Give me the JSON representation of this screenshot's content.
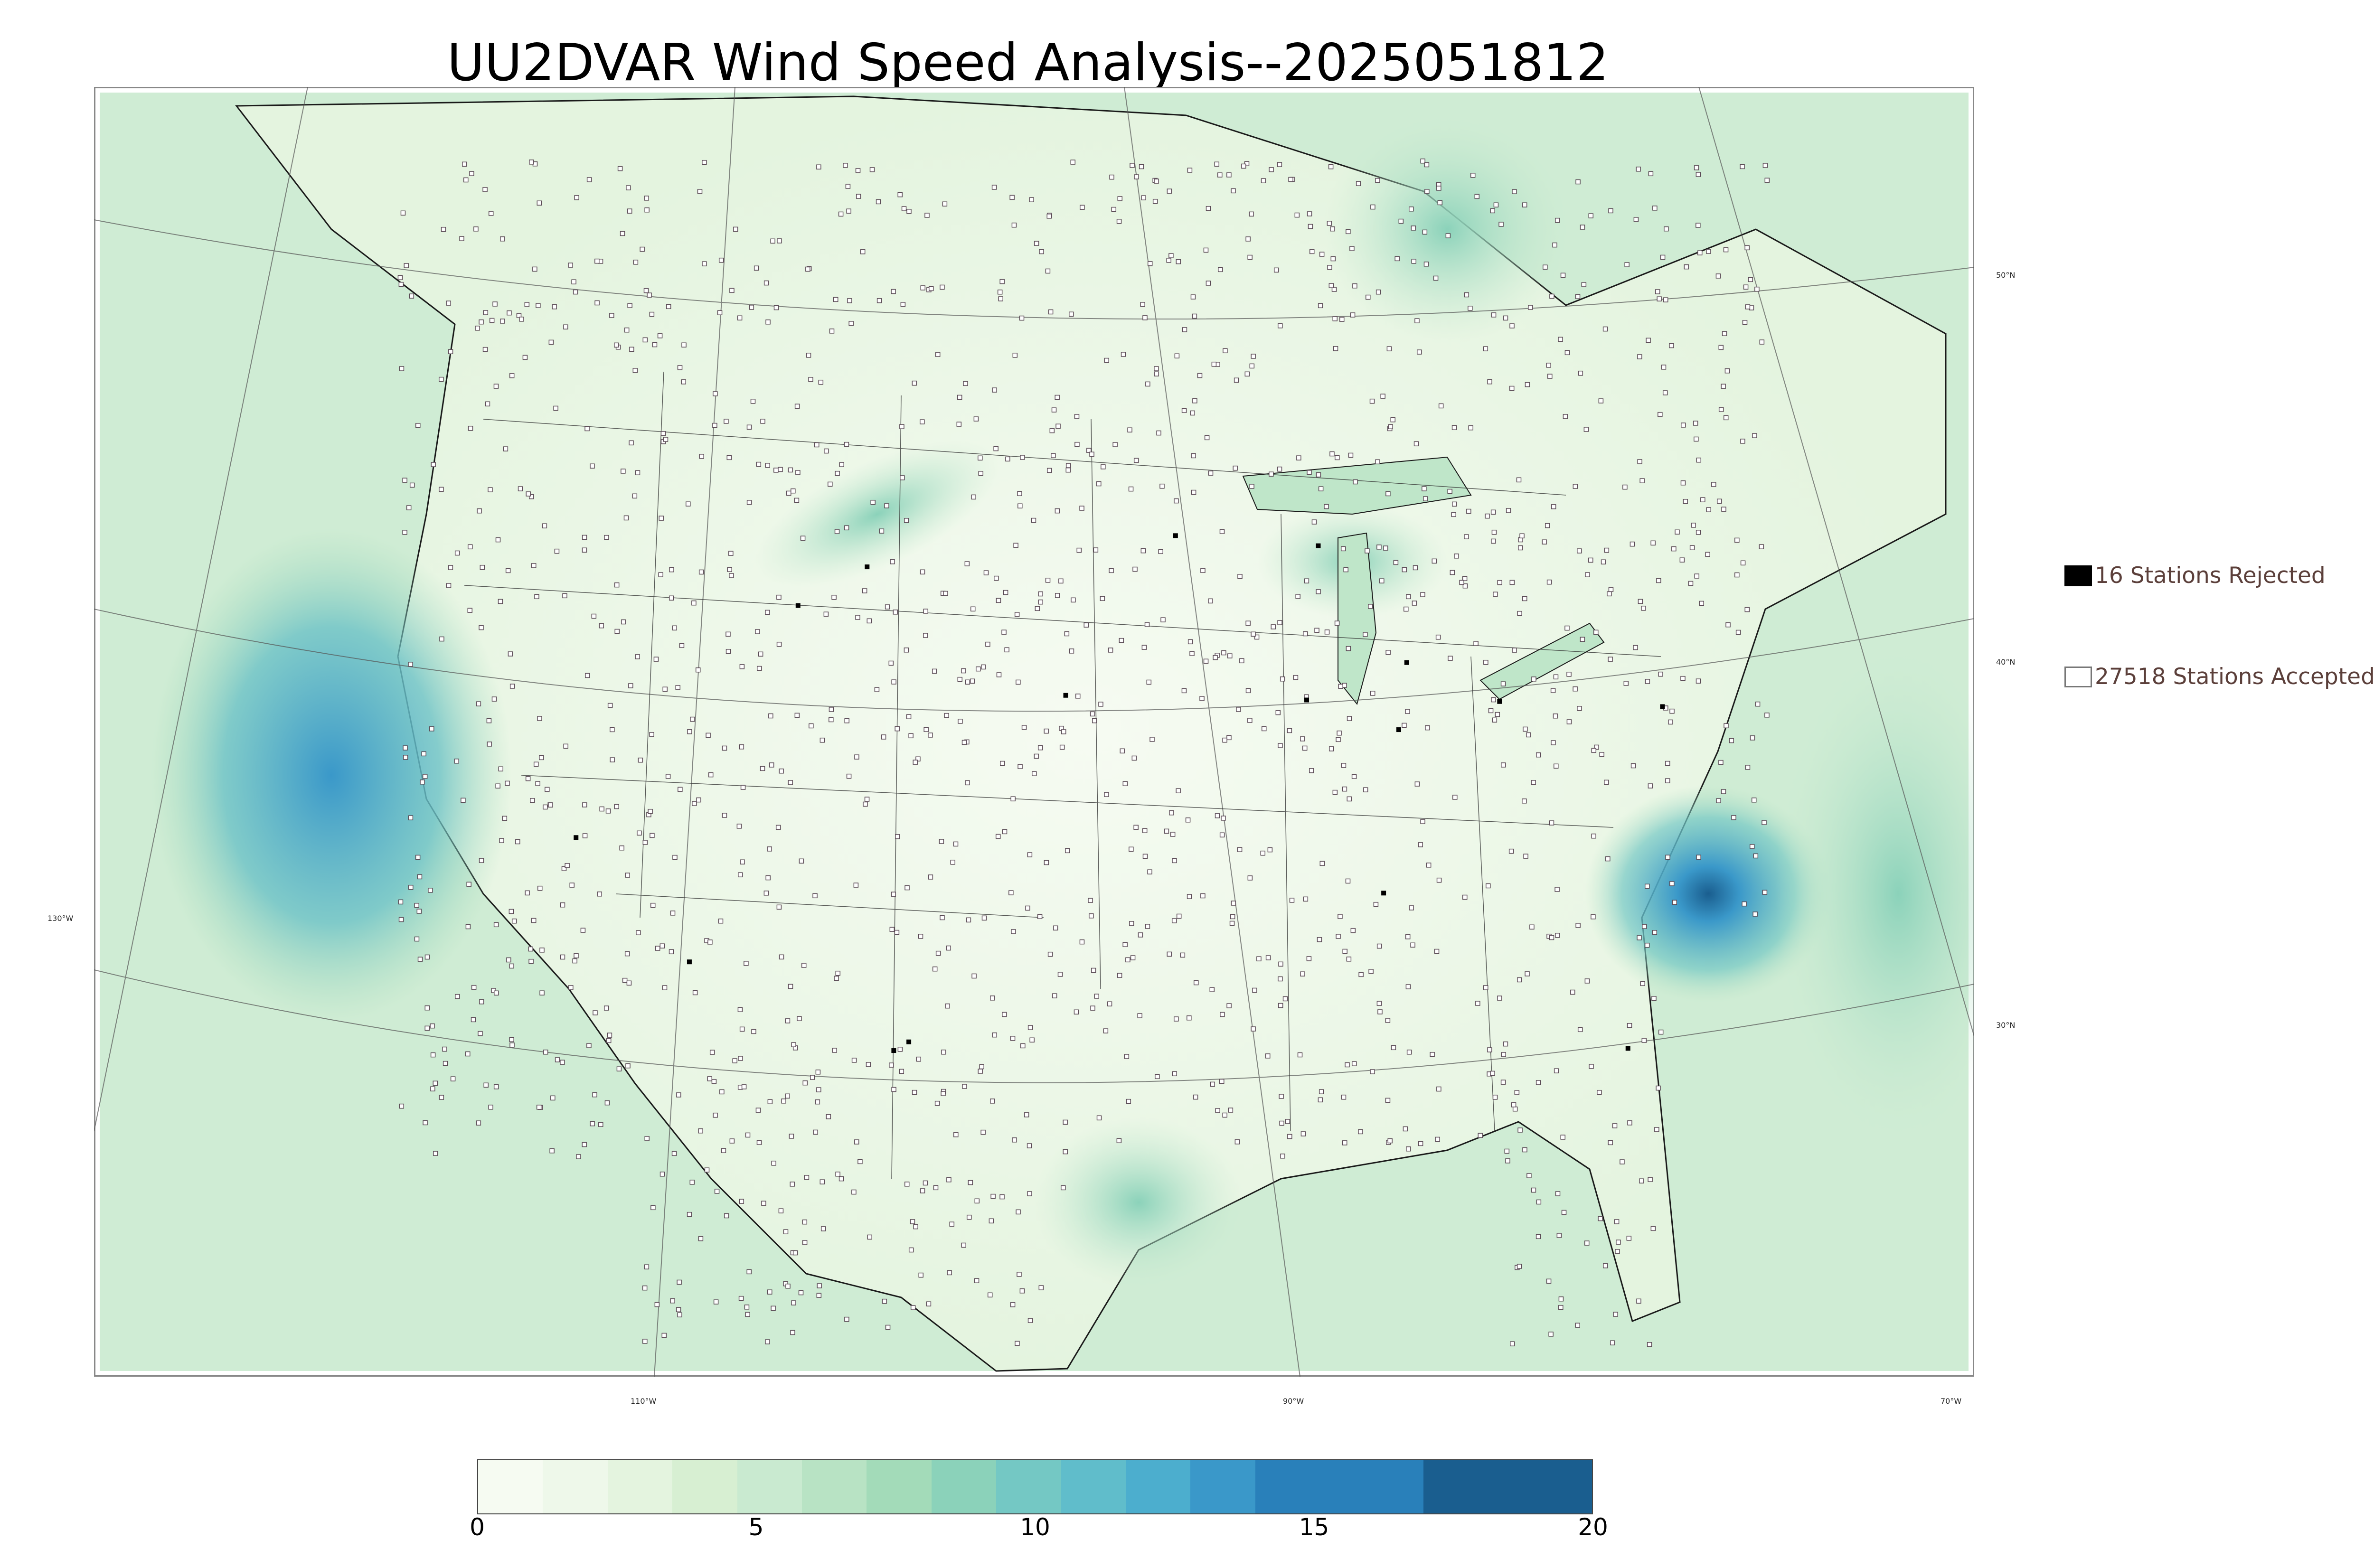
{
  "title": "UU2DVAR Wind Speed Analysis--2025051812",
  "map": {
    "lat_labels": [
      "50°N",
      "40°N",
      "30°N"
    ],
    "lon_labels": [
      "130°W",
      "110°W",
      "90°W",
      "70°W"
    ]
  },
  "legend": {
    "rejected_label": "16 Stations Rejected",
    "accepted_label": "27518 Stations Accepted",
    "rejected_color": "#000000",
    "accepted_color": "#ffffff"
  },
  "colorbar": {
    "ticks": [
      "0",
      "5",
      "10",
      "15",
      "20"
    ],
    "min": 0,
    "max": 20,
    "colors": [
      "#f6fbf2",
      "#eef8ea",
      "#e4f4df",
      "#d7efd2",
      "#c9ead0",
      "#b8e3c4",
      "#a3dbb9",
      "#8bd2ba",
      "#74c8c4",
      "#60bdcb",
      "#4caece",
      "#3a98c9",
      "#2980ba",
      "#1a5e8f"
    ]
  }
}
